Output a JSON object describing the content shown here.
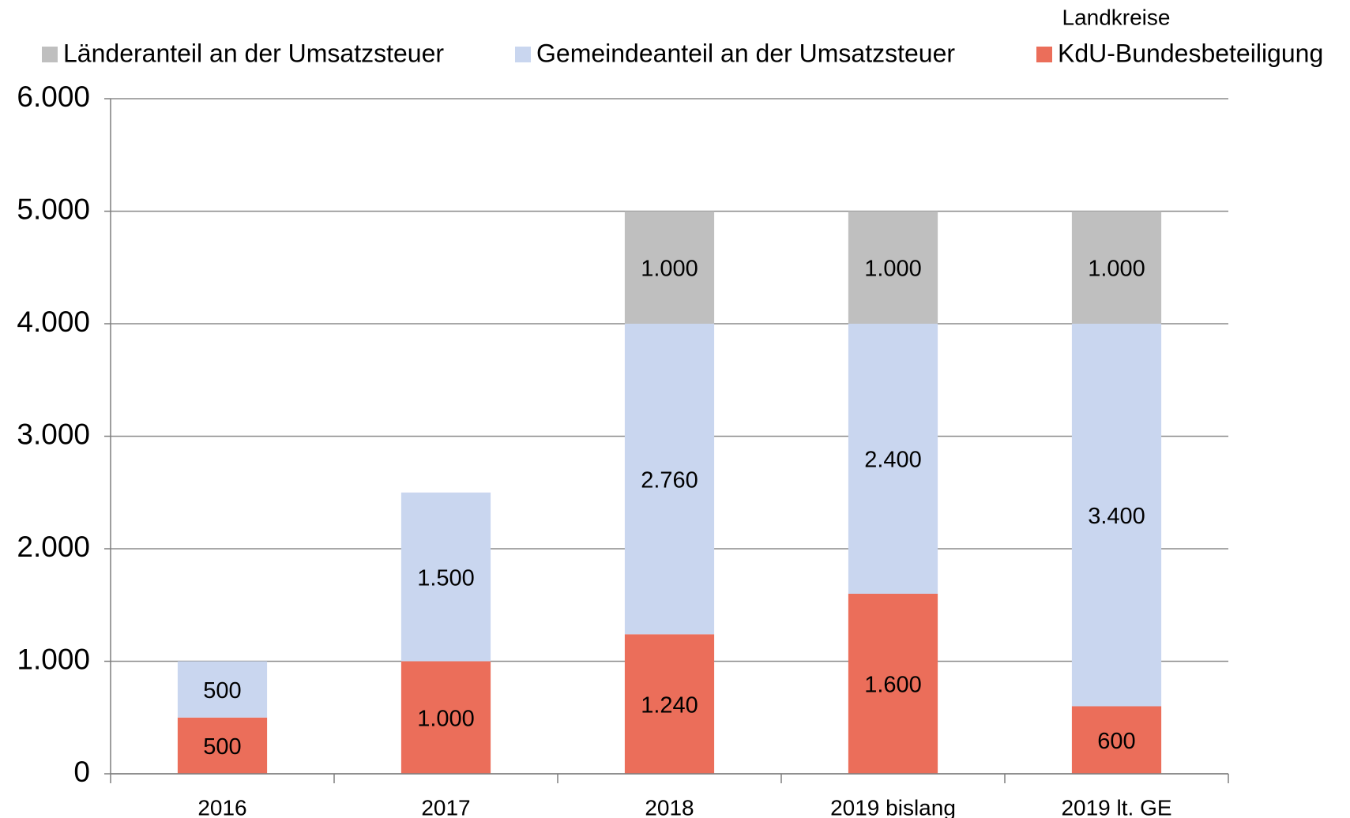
{
  "chart_data": {
    "type": "stacked_bar",
    "annotation": "Landkreise",
    "categories": [
      "2016",
      "2017",
      "2018",
      "2019 bislang",
      "2019 lt. GE"
    ],
    "series": [
      {
        "name": "Länderanteil an der Umsatzsteuer",
        "color": "#bfbfbf",
        "values": [
          null,
          null,
          1000,
          1000,
          1000
        ],
        "value_labels": [
          null,
          null,
          "1.000",
          "1.000",
          "1.000"
        ]
      },
      {
        "name": "Gemeindeanteil an der Umsatzsteuer",
        "color": "#c9d6ef",
        "values": [
          500,
          1500,
          2760,
          2400,
          3400
        ],
        "value_labels": [
          "500",
          "1.500",
          "2.760",
          "2.400",
          "3.400"
        ]
      },
      {
        "name": "KdU-Bundesbeteiligung",
        "color": "#eb6e5a",
        "values": [
          500,
          1000,
          1240,
          1600,
          600
        ],
        "value_labels": [
          "500",
          "1.000",
          "1.240",
          "1.600",
          "600"
        ]
      }
    ],
    "stack_order": [
      "KdU-Bundesbeteiligung",
      "Gemeindeanteil an der Umsatzsteuer",
      "Länderanteil an der Umsatzsteuer"
    ],
    "ylim": [
      0,
      6000
    ],
    "yticks": [
      0,
      {
        "value": 1000,
        "label": "1.000"
      },
      {
        "value": 2000,
        "label": "2.000"
      },
      {
        "value": 3000,
        "label": "3.000"
      },
      {
        "value": 4000,
        "label": "4.000"
      },
      {
        "value": 5000,
        "label": "5.000"
      },
      {
        "value": 6000,
        "label": "6.000"
      }
    ],
    "grid": true
  }
}
